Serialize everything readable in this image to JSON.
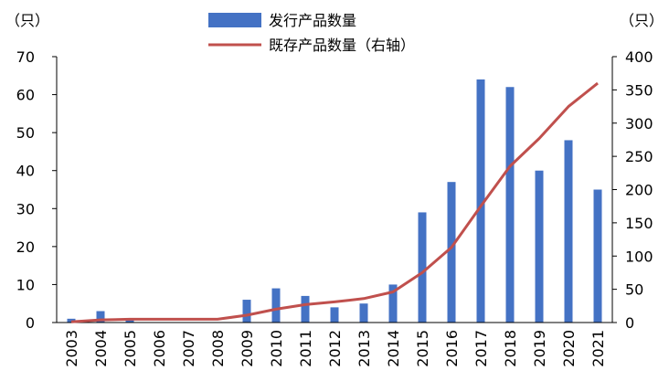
{
  "chart_data": {
    "type": "bar",
    "categories": [
      "2003",
      "2004",
      "2005",
      "2006",
      "2007",
      "2008",
      "2009",
      "2010",
      "2011",
      "2012",
      "2013",
      "2014",
      "2015",
      "2016",
      "2017",
      "2018",
      "2019",
      "2020",
      "2021"
    ],
    "series": [
      {
        "name": "发行产品数量",
        "type": "bar",
        "axis": "left",
        "color": "#4472C4",
        "values": [
          1,
          3,
          1,
          0,
          0,
          0,
          6,
          9,
          7,
          4,
          5,
          10,
          29,
          37,
          64,
          62,
          40,
          48,
          35
        ]
      },
      {
        "name": "既存产品数量（右轴）",
        "type": "line",
        "axis": "right",
        "color": "#C0504D",
        "values": [
          1,
          4,
          5,
          5,
          5,
          5,
          11,
          20,
          27,
          31,
          36,
          46,
          75,
          113,
          175,
          235,
          277,
          325,
          360
        ]
      }
    ],
    "left_axis": {
      "unit": "（只）",
      "ylim": [
        0,
        70
      ],
      "ticks": [
        0,
        10,
        20,
        30,
        40,
        50,
        60,
        70
      ]
    },
    "right_axis": {
      "unit": "（只）",
      "ylim": [
        0,
        400
      ],
      "ticks": [
        0,
        50,
        100,
        150,
        200,
        250,
        300,
        350,
        400
      ]
    },
    "grid": false,
    "legend": "top-center"
  }
}
